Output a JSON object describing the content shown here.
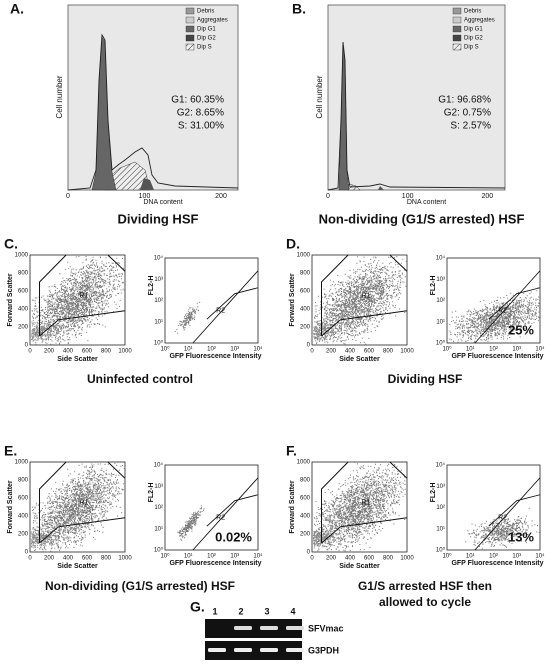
{
  "histogram_axes": {
    "y_label": "Cell number",
    "x_label": "DNA content",
    "x_ticks": [
      "0",
      "100",
      "200"
    ],
    "legend": [
      "Debris",
      "Aggregates",
      "Dip G1",
      "Dip G2",
      "Dip S"
    ]
  },
  "histograms": [
    {
      "letter": "A.",
      "caption": "Dividing HSF",
      "stats": [
        "G1: 60.35%",
        "G2: 8.65%",
        "S: 31.00%"
      ]
    },
    {
      "letter": "B.",
      "caption": "Non-dividing (G1/S arrested) HSF",
      "stats": [
        "G1: 96.68%",
        "G2: 0.75%",
        "S: 2.57%"
      ]
    }
  ],
  "flow_axes": {
    "scatter_y_label": "Forward Scatter",
    "scatter_x_label": "Side Scatter",
    "linear_ticks": [
      "0",
      "200",
      "400",
      "600",
      "800",
      "1000"
    ],
    "fluor_y_label": "FL2-H",
    "fluor_x_label": "GFP Fluorescence Intensity",
    "log_ticks": [
      "10⁰",
      "10¹",
      "10²",
      "10³",
      "10⁴"
    ],
    "gate_label": "R1",
    "region_label": "R2"
  },
  "flow_panels": [
    {
      "letter": "C.",
      "caption": [
        "Uninfected control"
      ],
      "percent": null
    },
    {
      "letter": "D.",
      "caption": [
        "Dividing HSF"
      ],
      "percent": "25%"
    },
    {
      "letter": "E.",
      "caption": [
        "Non-dividing (G1/S arrested) HSF"
      ],
      "percent": "0.02%"
    },
    {
      "letter": "F.",
      "caption": [
        "G1/S arrested HSF then",
        "allowed to cycle"
      ],
      "percent": "13%"
    }
  ],
  "gel": {
    "letter": "G.",
    "lanes": [
      "1",
      "2",
      "3",
      "4"
    ],
    "bands": [
      "SFVmac",
      "G3PDH"
    ]
  }
}
